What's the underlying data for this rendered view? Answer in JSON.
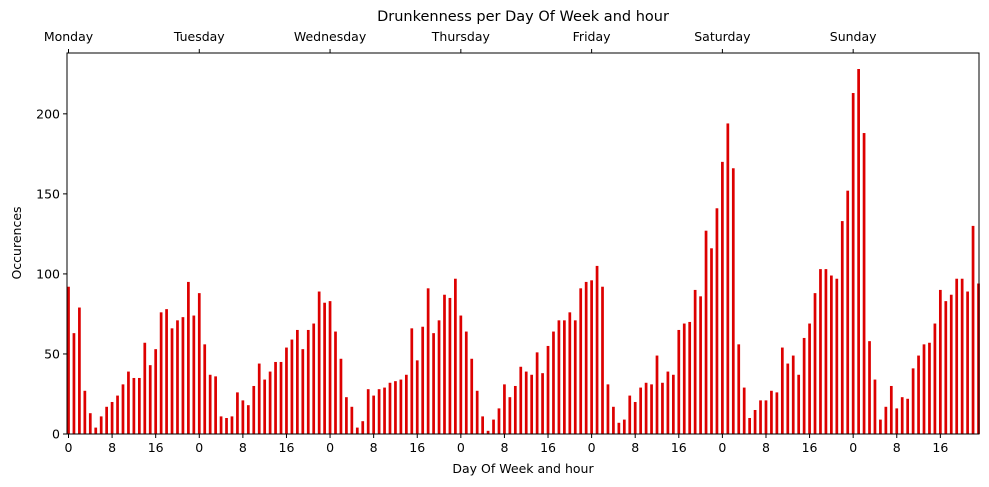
{
  "chart_data": {
    "type": "bar",
    "title": "Drunkenness per Day Of Week and hour",
    "xlabel": "Day Of Week and hour",
    "ylabel": "Occurences",
    "ylim": [
      0,
      238
    ],
    "yticks": [
      "0",
      "50",
      "100",
      "150",
      "200"
    ],
    "xticks_bottom": [
      "0",
      "8",
      "16",
      "0",
      "8",
      "16",
      "0",
      "8",
      "16",
      "0",
      "8",
      "16",
      "0",
      "8",
      "16",
      "0",
      "8",
      "16",
      "0",
      "8",
      "16"
    ],
    "xticks_top": [
      "Monday",
      "Tuesday",
      "Wednesday",
      "Thursday",
      "Friday",
      "Saturday",
      "Sunday"
    ],
    "bar_color": "#dd0000",
    "series": [
      {
        "values": [
          92,
          63,
          79,
          27,
          13,
          4,
          11,
          17,
          20,
          24,
          31,
          39,
          35,
          35,
          57,
          43,
          53,
          76,
          78,
          66,
          71,
          73,
          95,
          74,
          88,
          56,
          37,
          36,
          11,
          10,
          11,
          26,
          21,
          18,
          30,
          44,
          34,
          39,
          45,
          45,
          54,
          59,
          65,
          53,
          65,
          69,
          89,
          82,
          83,
          64,
          47,
          23,
          17,
          4,
          8,
          28,
          24,
          28,
          29,
          32,
          33,
          34,
          37,
          66,
          46,
          67,
          91,
          63,
          71,
          87,
          85,
          97,
          74,
          64,
          47,
          27,
          11,
          2,
          9,
          16,
          31,
          23,
          30,
          42,
          39,
          37,
          51,
          38,
          55,
          64,
          71,
          71,
          76,
          71,
          91,
          95,
          96,
          105,
          92,
          31,
          17,
          7,
          9,
          24,
          20,
          29,
          32,
          31,
          49,
          32,
          39,
          37,
          65,
          69,
          70,
          90,
          86,
          127,
          116,
          141,
          170,
          194,
          166,
          56,
          29,
          10,
          15,
          21,
          21,
          27,
          26,
          54,
          44,
          49,
          37,
          60,
          69,
          88,
          103,
          103,
          99,
          97,
          133,
          152,
          213,
          228,
          188,
          58,
          34,
          9,
          17,
          30,
          16,
          23,
          22,
          41,
          49,
          56,
          57,
          69,
          90,
          83,
          87,
          97,
          97,
          89,
          130,
          94
        ]
      }
    ]
  }
}
